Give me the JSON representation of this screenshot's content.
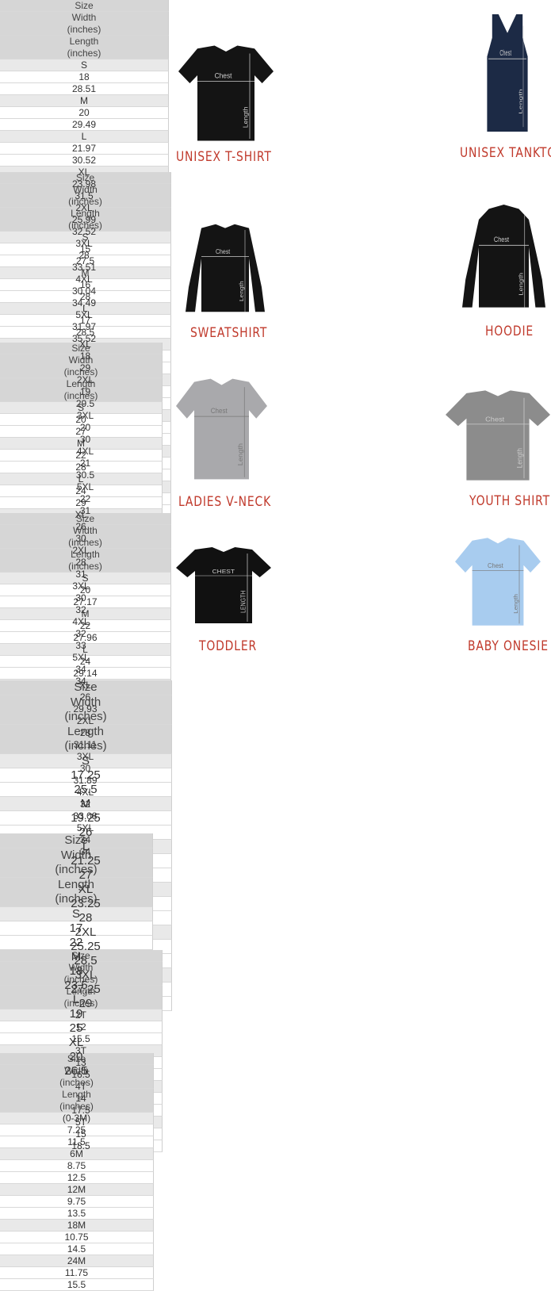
{
  "panels": [
    {
      "product": "UNISEX T-SHIRT",
      "diagram": {
        "chest": "Chest",
        "length": "Length"
      },
      "header": [
        "Size",
        "Width (inches)",
        "Length (inches)"
      ],
      "rows": [
        [
          "S",
          "18",
          "28.51"
        ],
        [
          "M",
          "20",
          "29.49"
        ],
        [
          "L",
          "21.97",
          "30.52"
        ],
        [
          "XL",
          "23.98",
          "31.5"
        ],
        [
          "2XL",
          "25.99",
          "32.52"
        ],
        [
          "3XL",
          "28",
          "33.51"
        ],
        [
          "4XL",
          "30.04",
          "34.49"
        ],
        [
          "5XL",
          "31.97",
          "35.52"
        ]
      ]
    },
    {
      "product": "UNISEX TANKTOP",
      "diagram": {
        "chest": "Chest",
        "length": "Length"
      },
      "header": [
        "Size",
        "Width (inches)",
        "Length (inches)"
      ],
      "rows": [
        [
          "S",
          "15",
          "27.5"
        ],
        [
          "M",
          "16",
          "28"
        ],
        [
          "L",
          "17",
          "28.5"
        ],
        [
          "XL",
          "18",
          "29"
        ],
        [
          "2XL",
          "19",
          "29.5"
        ],
        [
          "3XL",
          "20",
          "30"
        ],
        [
          "4XL",
          "21",
          "30.5"
        ],
        [
          "5XL",
          "22",
          "31"
        ]
      ]
    },
    {
      "product": "SWEATSHIRT",
      "diagram": {
        "chest": "Chest",
        "length": "Length"
      },
      "header": [
        "Size",
        "Width (inches)",
        "Length (inches)"
      ],
      "rows": [
        [
          "S",
          "20",
          "27"
        ],
        [
          "M",
          "22",
          "28"
        ],
        [
          "L",
          "24",
          "29"
        ],
        [
          "XL",
          "26",
          "30"
        ],
        [
          "2XL",
          "28",
          "31"
        ],
        [
          "3XL",
          "30",
          "32"
        ],
        [
          "4XL",
          "32",
          "33"
        ],
        [
          "5XL",
          "34",
          "34"
        ]
      ]
    },
    {
      "product": "HOODIE",
      "diagram": {
        "chest": "Chest",
        "length": "Length"
      },
      "header": [
        "Size",
        "Width (inches)",
        "Length (inches)"
      ],
      "rows": [
        [
          "S",
          "20",
          "27.17"
        ],
        [
          "M",
          "22",
          "27.96"
        ],
        [
          "L",
          "24",
          "29.14"
        ],
        [
          "XL",
          "26",
          "29.93"
        ],
        [
          "2XL",
          "28",
          "31.11"
        ],
        [
          "3XL",
          "30",
          "31.89"
        ],
        [
          "4XL",
          "32",
          "33.08"
        ],
        [
          "5XL",
          "34",
          "34"
        ]
      ]
    },
    {
      "product": "LADIES V-NECK",
      "diagram": {
        "chest": "Chest",
        "length": "Length"
      },
      "header": [
        "Size",
        "Width (inches)",
        "Length (inches)"
      ],
      "rows": [
        [
          "S",
          "17.25",
          "25.5"
        ],
        [
          "M",
          "19.25",
          "26"
        ],
        [
          "L",
          "21.25",
          "27"
        ],
        [
          "XL",
          "23.25",
          "28"
        ],
        [
          "2XL",
          "25.25",
          "28.5"
        ],
        [
          "3XL",
          "27.25",
          "29"
        ]
      ]
    },
    {
      "product": "YOUTH SHIRT",
      "diagram": {
        "chest": "Chest",
        "length": "Length"
      },
      "header": [
        "Size",
        "Width (inches)",
        "Length (inches)"
      ],
      "rows": [
        [
          "S",
          "17",
          "22"
        ],
        [
          "M",
          "18",
          "23.5"
        ],
        [
          "L",
          "19",
          "25"
        ],
        [
          "XL",
          "20",
          "26.5"
        ]
      ]
    },
    {
      "product": "TODDLER",
      "diagram": {
        "chest": "CHEST",
        "length": "LENGTH"
      },
      "header": [
        "Size",
        "Width (inches)",
        "Length (inches)"
      ],
      "rows": [
        [
          "2T",
          "12",
          "15.5"
        ],
        [
          "3T",
          "13",
          "16.5"
        ],
        [
          "4T",
          "14",
          "17.5"
        ],
        [
          "5T",
          "15",
          "18.5"
        ]
      ]
    },
    {
      "product": "BABY ONESIE",
      "diagram": {
        "chest": "Chest",
        "length": "Length"
      },
      "header": [
        "Size",
        "Width (inches)",
        "Length (inches)"
      ],
      "rows": [
        [
          "(0-3M)",
          "7.25",
          "11.5"
        ],
        [
          "6M",
          "8.75",
          "12.5"
        ],
        [
          "12M",
          "9.75",
          "13.5"
        ],
        [
          "18M",
          "10.75",
          "14.5"
        ],
        [
          "24M",
          "11.75",
          "15.5"
        ]
      ]
    }
  ]
}
